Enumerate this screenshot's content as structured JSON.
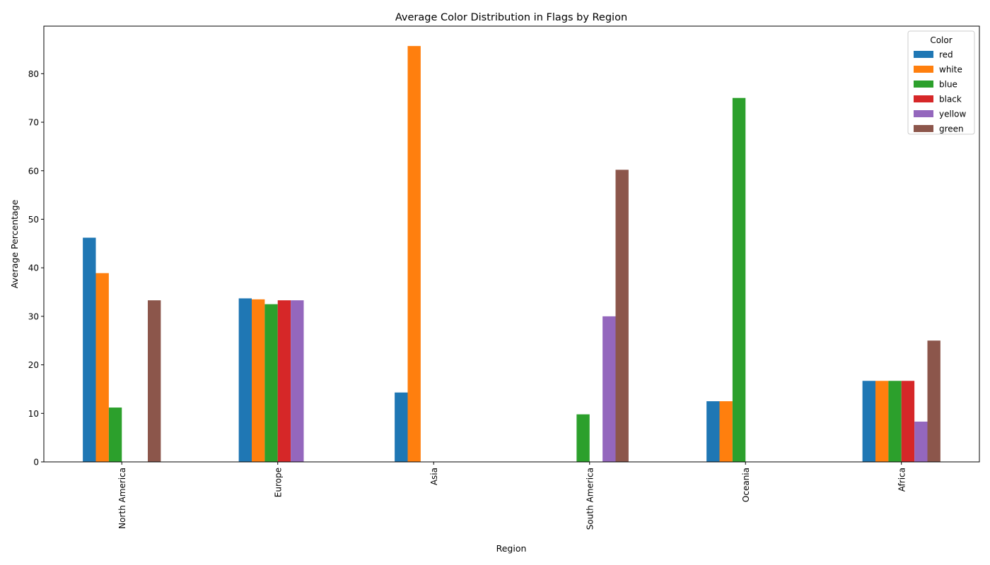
{
  "chart_data": {
    "type": "bar",
    "title": "Average Color Distribution in Flags by Region",
    "xlabel": "Region",
    "ylabel": "Average Percentage",
    "categories": [
      "North America",
      "Europe",
      "Asia",
      "South America",
      "Oceania",
      "Africa"
    ],
    "ylim": [
      0,
      89.8
    ],
    "yticks": [
      0,
      10,
      20,
      30,
      40,
      50,
      60,
      70,
      80
    ],
    "legend": {
      "title": "Color",
      "position": "top-right"
    },
    "grid": false,
    "series": [
      {
        "name": "red",
        "color": "#1f77b4",
        "values": [
          46.2,
          33.7,
          14.3,
          0,
          12.5,
          16.7
        ]
      },
      {
        "name": "white",
        "color": "#ff7f0e",
        "values": [
          38.9,
          33.5,
          85.7,
          0,
          12.5,
          16.7
        ]
      },
      {
        "name": "blue",
        "color": "#2ca02c",
        "values": [
          11.2,
          32.5,
          0,
          9.8,
          75.0,
          16.7
        ]
      },
      {
        "name": "black",
        "color": "#d62728",
        "values": [
          0,
          33.3,
          0,
          0,
          0,
          16.7
        ]
      },
      {
        "name": "yellow",
        "color": "#9467bd",
        "values": [
          0,
          33.3,
          0,
          30.0,
          0,
          8.3
        ]
      },
      {
        "name": "green",
        "color": "#8c564b",
        "values": [
          33.3,
          0,
          0,
          60.2,
          0,
          25.0
        ]
      }
    ]
  }
}
